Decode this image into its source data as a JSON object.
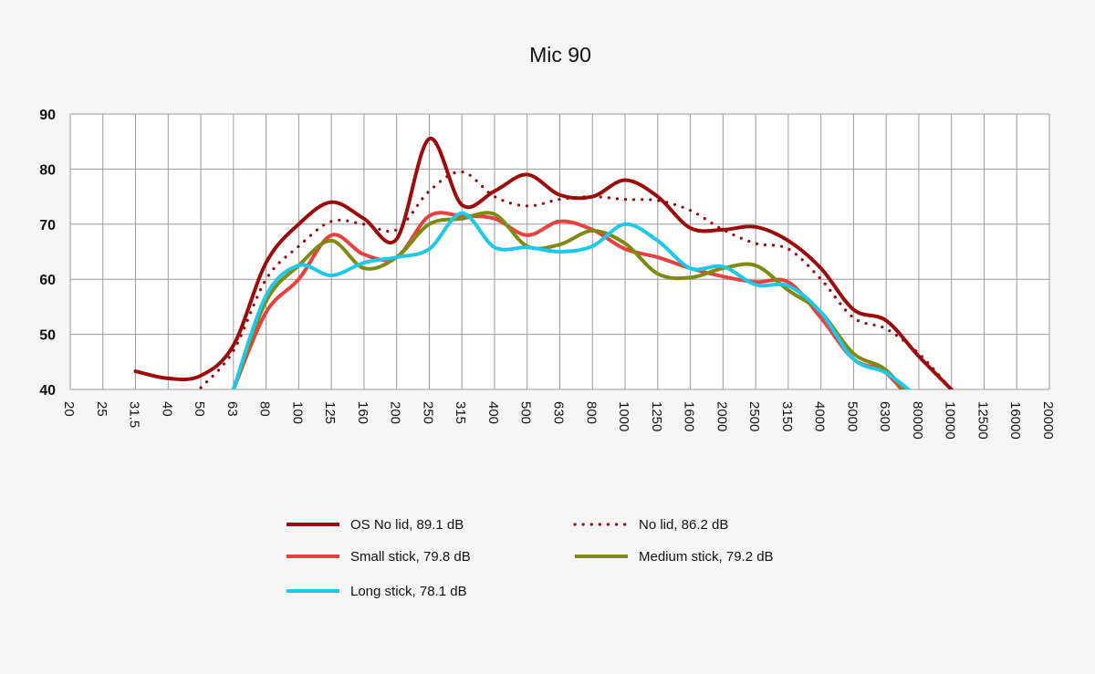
{
  "chart_data": {
    "type": "line",
    "title": "Mic 90",
    "xlabel": "",
    "ylabel": "",
    "ylim": [
      40,
      90
    ],
    "yticks": [
      90,
      80,
      70,
      60,
      50,
      40
    ],
    "grid": true,
    "legend_position": "bottom",
    "categories": [
      "20",
      "25",
      "31.5",
      "40",
      "50",
      "63",
      "80",
      "100",
      "125",
      "160",
      "200",
      "250",
      "315",
      "400",
      "500",
      "630",
      "800",
      "1000",
      "1250",
      "1600",
      "2000",
      "2500",
      "3150",
      "4000",
      "5000",
      "6300",
      "80000",
      "10000",
      "12500",
      "16000",
      "20000"
    ],
    "series": [
      {
        "name": "OS No lid, 89.1 dB",
        "color": "#9b0b0b",
        "style": "solid",
        "values": [
          null,
          null,
          43.3,
          42,
          42.5,
          48,
          63,
          70,
          74,
          71,
          67.3,
          85.5,
          73.5,
          76,
          79,
          75.3,
          75,
          78,
          75,
          69.3,
          69,
          69.5,
          67,
          62,
          54.5,
          52.5,
          46,
          40,
          null,
          null,
          null
        ]
      },
      {
        "name": "No lid, 86.2 dB",
        "color": "#9b0b0b",
        "style": "dotted",
        "values": [
          null,
          null,
          null,
          null,
          40.3,
          47,
          60,
          66,
          70.5,
          70,
          69,
          76,
          79.5,
          75,
          73.3,
          74.5,
          75,
          74.5,
          74.3,
          72.5,
          69,
          66.5,
          65.5,
          60,
          53,
          51,
          46.5,
          40,
          null,
          null,
          null
        ]
      },
      {
        "name": "Small stick, 79.8 dB",
        "color": "#e8403f",
        "style": "solid",
        "values": [
          null,
          null,
          null,
          null,
          null,
          40,
          54,
          60,
          68,
          64.5,
          64,
          71.5,
          71.5,
          71,
          68,
          70.5,
          69,
          65.5,
          64,
          62,
          60.5,
          59.5,
          59.5,
          53,
          45.5,
          43,
          36,
          null,
          null,
          null,
          null
        ]
      },
      {
        "name": "Medium stick, 79.2 dB",
        "color": "#7f8a12",
        "style": "solid",
        "values": [
          null,
          null,
          null,
          null,
          null,
          40,
          56,
          62.5,
          67,
          62,
          64,
          70,
          71,
          71.8,
          66,
          66.3,
          68.8,
          66.5,
          61,
          60.3,
          62,
          62.5,
          58,
          54,
          46.5,
          43.5,
          36.5,
          null,
          null,
          null,
          null
        ]
      },
      {
        "name": "Long stick, 78.1 dB",
        "color": "#1ec8e8",
        "style": "solid",
        "values": [
          null,
          null,
          null,
          null,
          null,
          40,
          57,
          62.5,
          60.7,
          63,
          64,
          65.5,
          72,
          65.8,
          65.8,
          65,
          66,
          70,
          67,
          62,
          62.3,
          59,
          58.8,
          54,
          45.5,
          43,
          38.5,
          null,
          null,
          null,
          null
        ]
      }
    ]
  }
}
